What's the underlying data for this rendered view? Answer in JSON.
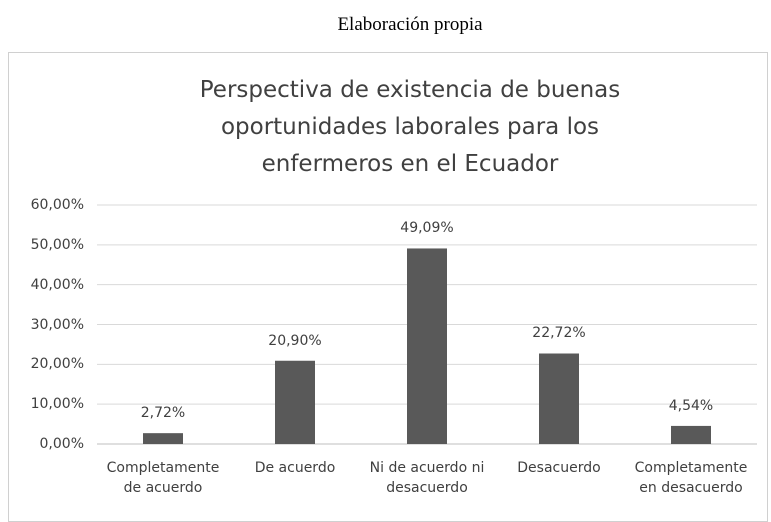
{
  "caption": "Elaboración propia",
  "chart_data": {
    "type": "bar",
    "title": "Perspectiva de existencia de buenas oportunidades laborales para los enfermeros en el Ecuador",
    "categories": [
      "Completamente de acuerdo",
      "De acuerdo",
      "Ni de acuerdo ni desacuerdo",
      "Desacuerdo",
      "Completamente en desacuerdo"
    ],
    "values": [
      2.72,
      20.9,
      49.09,
      22.72,
      4.54
    ],
    "value_labels": [
      "2,72%",
      "20,90%",
      "49,09%",
      "22,72%",
      "4,54%"
    ],
    "color": "#595959",
    "ylim": [
      0,
      60
    ],
    "yticks": [
      {
        "value": 0,
        "label": "0,00%"
      },
      {
        "value": 10,
        "label": "10,00%"
      },
      {
        "value": 20,
        "label": "20,00%"
      },
      {
        "value": 30,
        "label": "30,00%"
      },
      {
        "value": 40,
        "label": "40,00%"
      },
      {
        "value": 50,
        "label": "50,00%"
      },
      {
        "value": 60,
        "label": "60,00%"
      }
    ],
    "grid": true
  }
}
